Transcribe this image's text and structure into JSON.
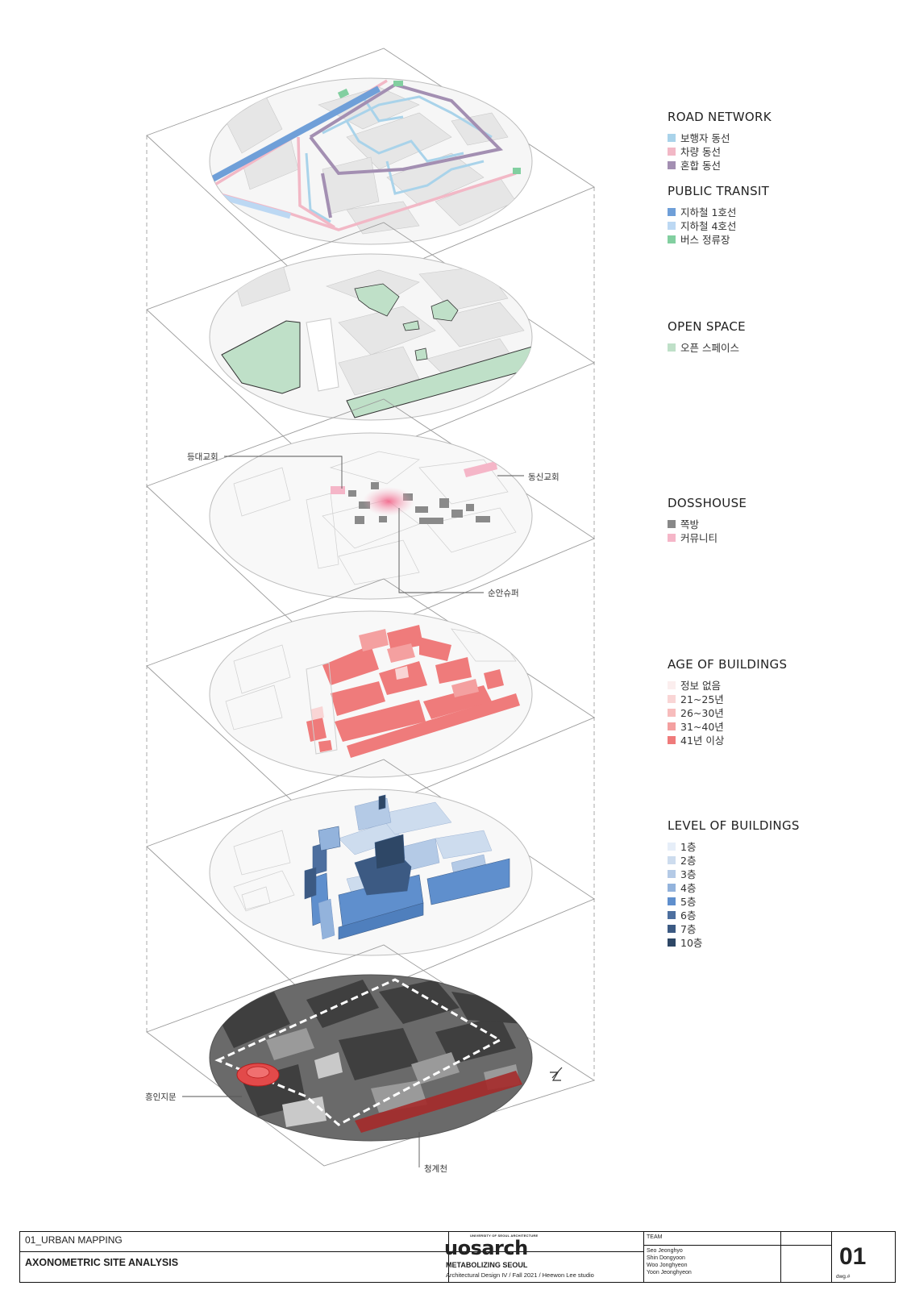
{
  "legend": {
    "road_network": {
      "title": "ROAD NETWORK",
      "items": [
        {
          "label": "보행자 동선",
          "color": "#a9d3ea"
        },
        {
          "label": "차량 동선",
          "color": "#f2b8c6"
        },
        {
          "label": "혼합 동선",
          "color": "#a38fb2"
        }
      ]
    },
    "public_transit": {
      "title": "PUBLIC TRANSIT",
      "items": [
        {
          "label": "지하철 1호선",
          "color": "#6f9fd8"
        },
        {
          "label": "지하철 4호선",
          "color": "#bcd8f3"
        },
        {
          "label": "버스 정류장",
          "color": "#82cfa0"
        }
      ]
    },
    "open_space": {
      "title": "OPEN SPACE",
      "items": [
        {
          "label": "오픈 스페이스",
          "color": "#bfe0c8"
        }
      ]
    },
    "dosshouse": {
      "title": "DOSSHOUSE",
      "items": [
        {
          "label": "쪽방",
          "color": "#888888"
        },
        {
          "label": "커뮤니티",
          "color": "#f5b6c8"
        }
      ]
    },
    "age_of_buildings": {
      "title": "AGE OF BUILDINGS",
      "items": [
        {
          "label": "정보 없음",
          "color": "#fbeeee"
        },
        {
          "label": "21~25년",
          "color": "#f9d5d5"
        },
        {
          "label": "26~30년",
          "color": "#f7bcbc"
        },
        {
          "label": "31~40년",
          "color": "#f4a0a0"
        },
        {
          "label": "41년 이상",
          "color": "#ef7b7b"
        }
      ]
    },
    "level_of_buildings": {
      "title": "LEVEL OF BUILDINGS",
      "items": [
        {
          "label": "1층",
          "color": "#e6eef8"
        },
        {
          "label": "2층",
          "color": "#cddcee"
        },
        {
          "label": "3층",
          "color": "#b4cae6"
        },
        {
          "label": "4층",
          "color": "#93b3dc"
        },
        {
          "label": "5층",
          "color": "#5f8fcd"
        },
        {
          "label": "6층",
          "color": "#4d6f9f"
        },
        {
          "label": "7층",
          "color": "#3c5a83"
        },
        {
          "label": "10층",
          "color": "#2e4766"
        }
      ]
    }
  },
  "callouts": {
    "dungdae": "등대교회",
    "dongsin": "동신교회",
    "sunan": "순안슈퍼",
    "heunginjimun": "흥인지문",
    "cheonggyecheon": "청계천"
  },
  "title_block": {
    "sheet_label": "01_URBAN MAPPING",
    "sheet_title": "AXONOMETRIC SITE ANALYSIS",
    "logo_text": "uosarch",
    "logo_small": "UNIVERSITY OF SEOUL ARCHITECTURE",
    "project": "METABOLIZING SEOUL",
    "course": "Architectural Design IV / Fall 2021 / Heewon Lee studio",
    "team_label": "TEAM",
    "team": [
      "Seo Jeonghyo",
      "Shin Dongyoon",
      "Woo Jonghyeon",
      "Yoon Jeonghyeon"
    ],
    "dwg_number": "01",
    "dwg_label": "dwg.#"
  },
  "colors": {
    "frame": "#9a9a9a",
    "base_fill": "#f5f5f5",
    "block_fill": "#e4e4e4",
    "line_gray": "#bdbdbd"
  }
}
